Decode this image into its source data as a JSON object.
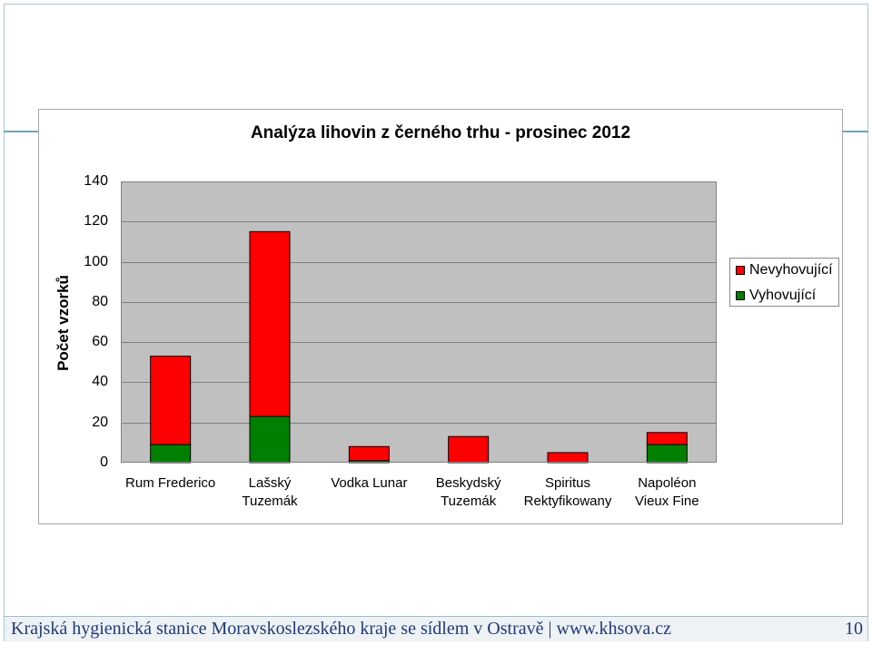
{
  "footer": {
    "organization": "Krajská hygienická stanice Moravskoslezského kraje se sídlem v Ostravě",
    "separator": "|",
    "website": "www.khsova.cz",
    "page_number": "10"
  },
  "chart_data": {
    "type": "bar",
    "stacked": true,
    "title": "Analýza lihovin z černého trhu - prosinec 2012",
    "xlabel": "",
    "ylabel": "Počet vzorků",
    "ylim": [
      0,
      140
    ],
    "yticks": [
      0,
      20,
      40,
      60,
      80,
      100,
      120,
      140
    ],
    "grid": true,
    "legend_position": "right",
    "categories": [
      "Rum Frederico",
      "Lašský Tuzemák",
      "Vodka Lunar",
      "Beskydský Tuzemák",
      "Spiritus Rektyfikowany",
      "Napoléon Vieux Fine"
    ],
    "series": [
      {
        "name": "Vyhovující",
        "values": [
          9,
          23,
          1,
          0,
          0,
          9
        ],
        "color": "#008000"
      },
      {
        "name": "Nevyhovující",
        "values": [
          44,
          92,
          7,
          13,
          5,
          6
        ],
        "color": "#ff0000"
      }
    ]
  }
}
